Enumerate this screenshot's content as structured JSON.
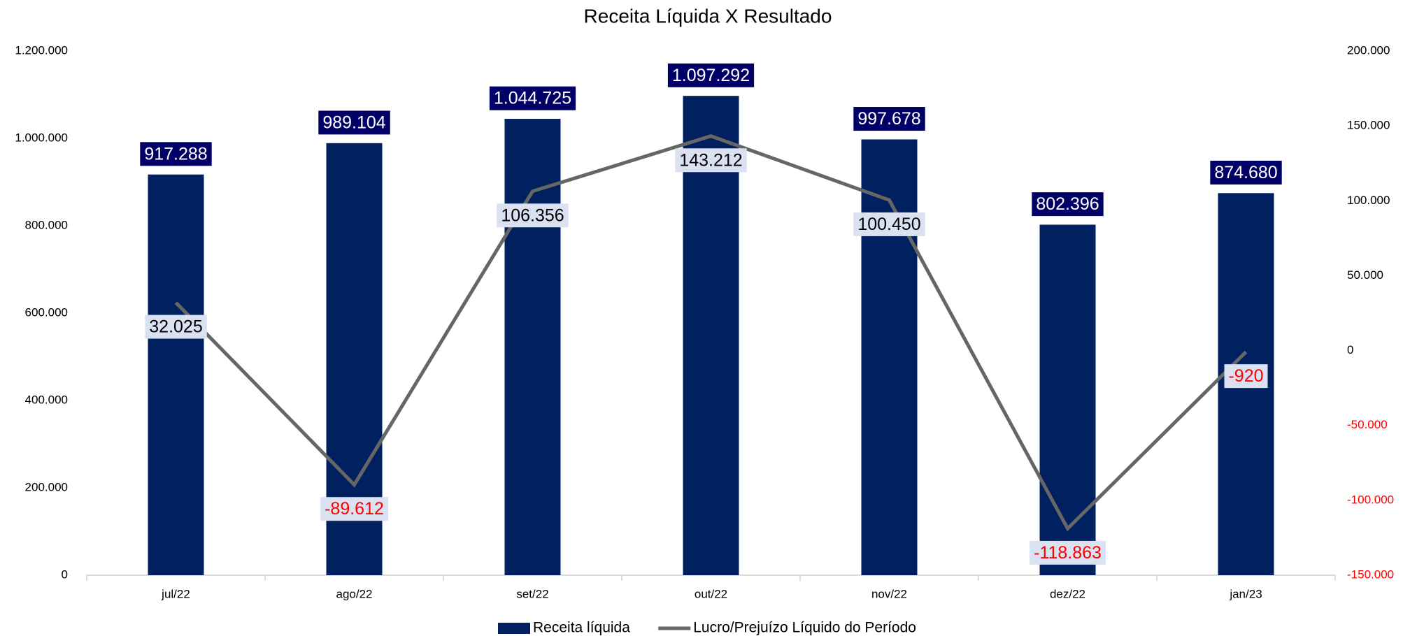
{
  "chart_data": {
    "type": "bar",
    "title": "Receita Líquida X Resultado",
    "categories": [
      "jul/22",
      "ago/22",
      "set/22",
      "out/22",
      "nov/22",
      "dez/22",
      "jan/23"
    ],
    "series": [
      {
        "name": "Receita líquida",
        "type": "bar",
        "color": "#002060",
        "label_color": "#000066",
        "values": [
          917288,
          989104,
          1044725,
          1097292,
          997678,
          802396,
          874680
        ],
        "value_labels": [
          "917.288",
          "989.104",
          "1.044.725",
          "1.097.292",
          "997.678",
          "802.396",
          "874.680"
        ]
      },
      {
        "name": "Lucro/Prejuízo Líquido do Período",
        "type": "line",
        "axis": "y2",
        "color": "#666666",
        "label_color": "#dae1f1",
        "values": [
          32025,
          -89612,
          106356,
          143212,
          100450,
          -118863,
          -920
        ],
        "value_labels": [
          "32.025",
          "-89.612",
          "106.356",
          "143.212",
          "100.450",
          "-118.863",
          "-920"
        ]
      }
    ],
    "ylim": [
      0,
      1200000
    ],
    "yticks": [
      0,
      {
        "value": 200000,
        "label": "200.000"
      },
      {
        "value": 400000,
        "label": "400.000"
      },
      {
        "value": 600000,
        "label": "600.000"
      },
      {
        "value": 800000,
        "label": "800.000"
      },
      {
        "value": 1000000,
        "label": "1.000.000"
      },
      {
        "value": 1200000,
        "label": "1.200.000"
      }
    ],
    "y2lim": [
      -150000,
      200000
    ],
    "y2ticks": [
      {
        "value": -150000,
        "label": "-150.000"
      },
      {
        "value": -100000,
        "label": "-100.000"
      },
      {
        "value": -50000,
        "label": "-50.000"
      },
      0,
      {
        "value": 50000,
        "label": "50.000"
      },
      {
        "value": 100000,
        "label": "100.000"
      },
      {
        "value": 150000,
        "label": "150.000"
      },
      {
        "value": 200000,
        "label": "200.000"
      }
    ],
    "negative_color": "#ff0000",
    "grid": false,
    "legend": "bottom"
  }
}
